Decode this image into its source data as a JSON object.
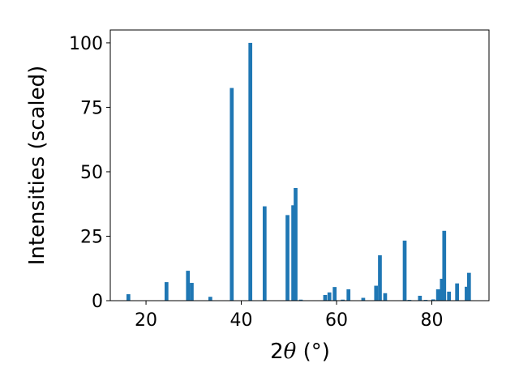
{
  "chart_data": {
    "type": "bar",
    "xlabel_main": "2",
    "xlabel_symbol": "θ",
    "xlabel_unit": " (°)",
    "ylabel": "Intensities (scaled)",
    "xlim": [
      12.5,
      92.0
    ],
    "ylim": [
      0,
      105
    ],
    "xticks": [
      20,
      40,
      60,
      80
    ],
    "yticks": [
      0,
      25,
      50,
      75,
      100
    ],
    "bar_width": 0.8,
    "color": "#1f77b4",
    "grid": false,
    "bars": [
      {
        "x": 16.3,
        "y": 2.5
      },
      {
        "x": 24.3,
        "y": 7.2
      },
      {
        "x": 28.8,
        "y": 11.6
      },
      {
        "x": 29.6,
        "y": 6.9
      },
      {
        "x": 33.5,
        "y": 1.5
      },
      {
        "x": 38.0,
        "y": 82.5
      },
      {
        "x": 41.9,
        "y": 100.0
      },
      {
        "x": 44.9,
        "y": 36.6
      },
      {
        "x": 49.7,
        "y": 33.2
      },
      {
        "x": 50.9,
        "y": 37.0
      },
      {
        "x": 51.4,
        "y": 43.7
      },
      {
        "x": 52.5,
        "y": 0.4
      },
      {
        "x": 57.6,
        "y": 2.2
      },
      {
        "x": 58.5,
        "y": 3.2
      },
      {
        "x": 59.6,
        "y": 5.3
      },
      {
        "x": 61.3,
        "y": 0.4
      },
      {
        "x": 62.5,
        "y": 4.4
      },
      {
        "x": 65.6,
        "y": 1.1
      },
      {
        "x": 68.3,
        "y": 5.8
      },
      {
        "x": 69.1,
        "y": 17.6
      },
      {
        "x": 70.2,
        "y": 2.9
      },
      {
        "x": 74.3,
        "y": 23.3
      },
      {
        "x": 75.3,
        "y": 0.3
      },
      {
        "x": 77.5,
        "y": 1.9
      },
      {
        "x": 78.7,
        "y": 0.3
      },
      {
        "x": 80.3,
        "y": 0.5
      },
      {
        "x": 81.3,
        "y": 4.4
      },
      {
        "x": 82.1,
        "y": 8.5
      },
      {
        "x": 82.6,
        "y": 27.1
      },
      {
        "x": 83.6,
        "y": 3.5
      },
      {
        "x": 85.3,
        "y": 6.7
      },
      {
        "x": 87.3,
        "y": 5.4
      },
      {
        "x": 87.8,
        "y": 10.8
      }
    ]
  }
}
